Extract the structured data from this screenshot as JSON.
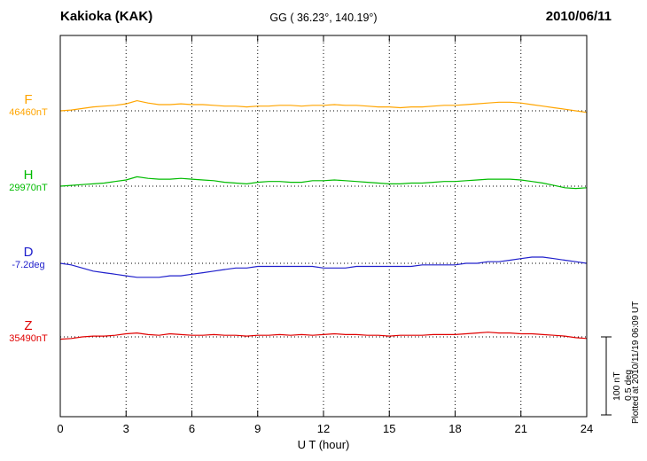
{
  "header": {
    "station": "Kakioka (KAK)",
    "coords": "GG ( 36.23°, 140.19°)",
    "date": "2010/06/11"
  },
  "axis": {
    "xlabel": "U T (hour)",
    "xmin": 0,
    "xmax": 24,
    "ticks": [
      0,
      3,
      6,
      9,
      12,
      15,
      18,
      21,
      24
    ]
  },
  "scalebar": {
    "nt_label": "100 nT",
    "deg_label": "0.5 deg"
  },
  "footer": {
    "plotted_at": "Plotted at 2010/11/19 06:09 UT"
  },
  "chart_data": {
    "type": "line",
    "title": "Kakioka (KAK) magnetogram, 2010/06/11",
    "xlabel": "U T (hour)",
    "xlim": [
      0,
      24
    ],
    "x_step": 0.5,
    "grid": "dotted vertical lines every 3 h; dotted horizontal baseline per trace",
    "legend_position": "left margin (F, H, D, Z with baseline values)",
    "scale": {
      "nT_per_bar": 100,
      "deg_per_bar": 0.5
    },
    "values_note": "values are deviations from each trace baseline, sampled every 0.5 h from 0 to 24 UT",
    "series": [
      {
        "name": "F",
        "unit": "nT",
        "baseline_label": "46460nT",
        "baseline_value": 46460,
        "color": "#FFA500",
        "values": [
          0,
          1,
          3,
          5,
          6,
          7,
          9,
          13,
          10,
          8,
          8,
          9,
          8,
          8,
          7,
          6,
          6,
          5,
          6,
          6,
          7,
          7,
          6,
          7,
          7,
          8,
          7,
          7,
          6,
          5,
          5,
          4,
          5,
          5,
          6,
          7,
          7,
          8,
          9,
          10,
          11,
          11,
          10,
          8,
          6,
          4,
          2,
          0,
          -2
        ]
      },
      {
        "name": "H",
        "unit": "nT",
        "baseline_label": "29970nT",
        "baseline_value": 29970,
        "color": "#00BB00",
        "values": [
          0,
          1,
          2,
          3,
          4,
          6,
          8,
          12,
          10,
          9,
          9,
          10,
          9,
          8,
          7,
          5,
          4,
          3,
          5,
          6,
          6,
          5,
          5,
          7,
          7,
          8,
          7,
          6,
          5,
          4,
          3,
          3,
          4,
          4,
          5,
          6,
          6,
          7,
          8,
          9,
          9,
          9,
          8,
          6,
          4,
          1,
          -2,
          -3,
          -2
        ]
      },
      {
        "name": "D",
        "unit": "deg",
        "baseline_label": "-7.2deg",
        "baseline_value": -7.2,
        "color": "#2020CC",
        "values": [
          0.0,
          -0.01,
          -0.03,
          -0.05,
          -0.06,
          -0.07,
          -0.08,
          -0.09,
          -0.09,
          -0.09,
          -0.08,
          -0.08,
          -0.07,
          -0.06,
          -0.05,
          -0.04,
          -0.03,
          -0.03,
          -0.02,
          -0.02,
          -0.02,
          -0.02,
          -0.02,
          -0.02,
          -0.03,
          -0.03,
          -0.03,
          -0.02,
          -0.02,
          -0.02,
          -0.02,
          -0.02,
          -0.02,
          -0.01,
          -0.01,
          -0.01,
          -0.01,
          0.0,
          0.0,
          0.01,
          0.01,
          0.02,
          0.03,
          0.04,
          0.04,
          0.03,
          0.02,
          0.01,
          0.0
        ]
      },
      {
        "name": "Z",
        "unit": "nT",
        "baseline_label": "35490nT",
        "baseline_value": 35490,
        "color": "#E00000",
        "values": [
          -3,
          -2,
          0,
          1,
          1,
          2,
          4,
          5,
          3,
          2,
          4,
          3,
          2,
          2,
          3,
          2,
          2,
          1,
          2,
          2,
          3,
          2,
          3,
          2,
          3,
          4,
          3,
          3,
          2,
          2,
          1,
          2,
          2,
          2,
          3,
          3,
          3,
          4,
          5,
          6,
          5,
          5,
          4,
          4,
          3,
          2,
          1,
          -1,
          -2
        ]
      }
    ]
  }
}
